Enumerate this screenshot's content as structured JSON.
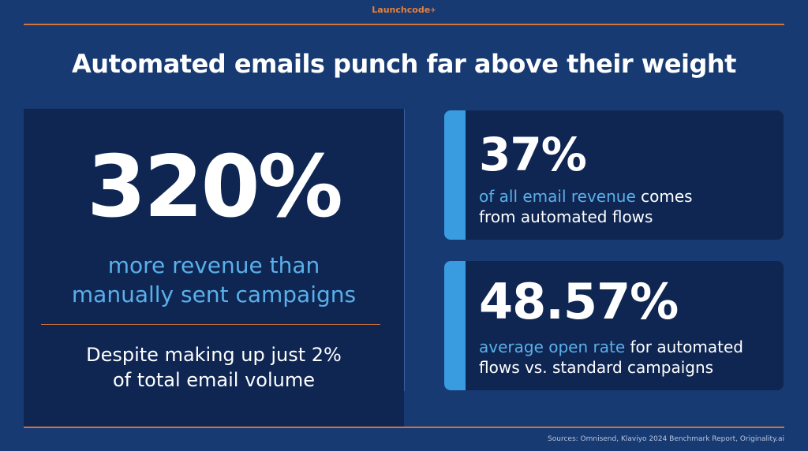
{
  "brand": {
    "name": "Launchcode",
    "icon": "plane-icon",
    "color": "#e8803a"
  },
  "title": "Automated emails punch far above their weight",
  "left": {
    "big_number": "320%",
    "subtitle_line1": "more revenue than",
    "subtitle_line2": "manually sent campaigns",
    "note_line1": "Despite making up just 2%",
    "note_line2": "of total email volume"
  },
  "cards": [
    {
      "stat": "37%",
      "highlight": "of all email revenue",
      "rest_line1": " comes",
      "line2": "from automated flows"
    },
    {
      "stat": "48.57%",
      "highlight": "average open rate",
      "rest_line1": " for automated",
      "line2": "flows vs. standard campaigns"
    }
  ],
  "sources": "Sources: Omnisend, Klaviyo 2024 Benchmark Report, Originality.ai",
  "colors": {
    "background": "#173a72",
    "panel": "#0f2653",
    "accent_blue": "#3a9ce0",
    "highlight_text": "#5ab0ea",
    "rule_orange": "#d0743c"
  }
}
